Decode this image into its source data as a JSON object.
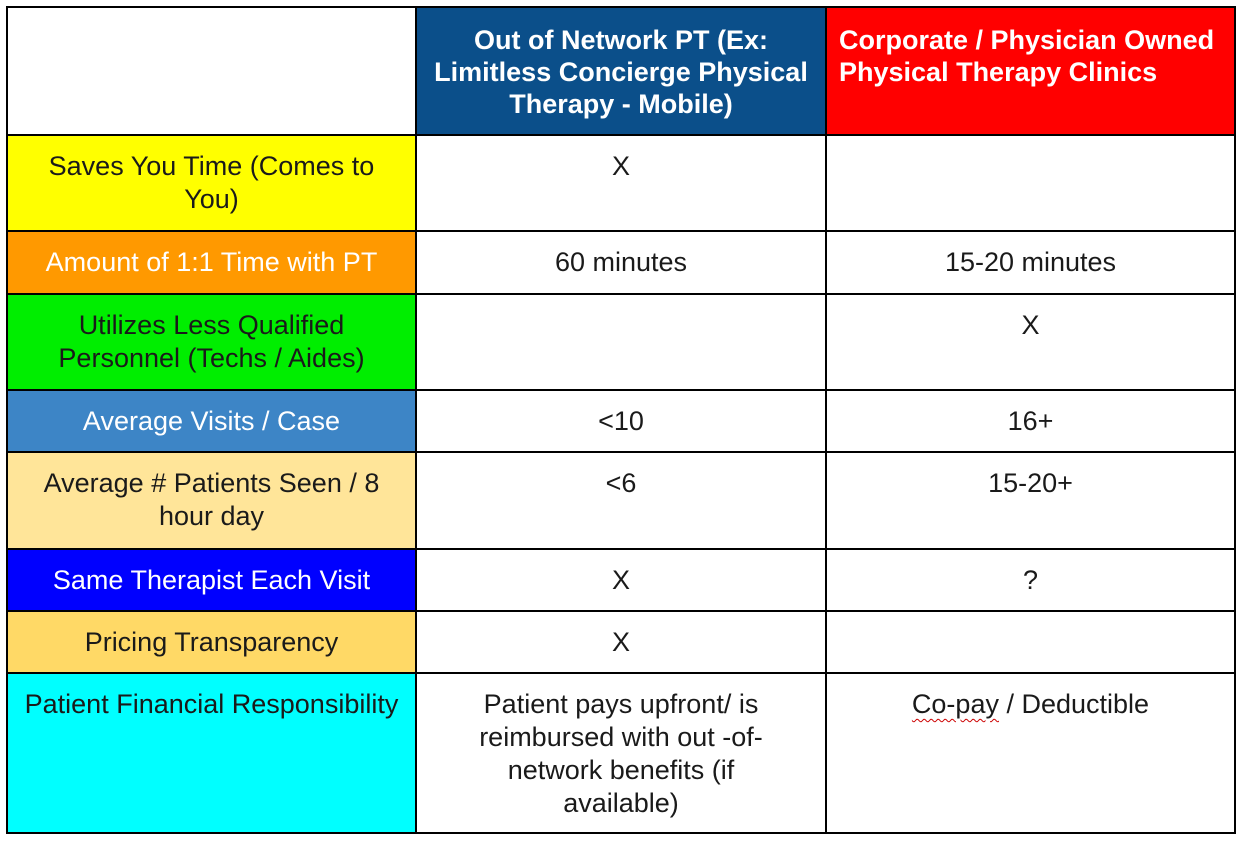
{
  "colors": {
    "header_col1": "#ffffff",
    "header_col2": "#0b4f8a",
    "header_col3": "#ff0000",
    "border": "#000000"
  },
  "header": {
    "col2": "Out of Network PT (Ex: Limitless Concierge Physical Therapy - Mobile)",
    "col3": "Corporate / Physician Owned Physical Therapy Clinics"
  },
  "rows": [
    {
      "label": "Saves You Time (Comes to You)",
      "label_bg": "#ffff00",
      "label_color": "#1a1a1a",
      "out_of_network": "X",
      "corporate": ""
    },
    {
      "label": "Amount of 1:1 Time with PT",
      "label_bg": "#ff9900",
      "label_color": "#ffffff",
      "out_of_network": "60 minutes",
      "corporate": "15-20 minutes"
    },
    {
      "label": "Utilizes Less Qualified Personnel (Techs / Aides)",
      "label_bg": "#00ee00",
      "label_color": "#1a1a1a",
      "out_of_network": "",
      "corporate": "X"
    },
    {
      "label": "Average Visits / Case",
      "label_bg": "#3d85c6",
      "label_color": "#ffffff",
      "out_of_network": "<10",
      "corporate": "16+"
    },
    {
      "label": "Average # Patients Seen / 8 hour day",
      "label_bg": "#ffe599",
      "label_color": "#1a1a1a",
      "out_of_network": "<6",
      "corporate": "15-20+"
    },
    {
      "label": "Same Therapist Each Visit",
      "label_bg": "#0000ff",
      "label_color": "#ffffff",
      "out_of_network": "X",
      "corporate": "?"
    },
    {
      "label": "Pricing Transparency",
      "label_bg": "#ffd966",
      "label_color": "#1a1a1a",
      "out_of_network": "X",
      "corporate": ""
    },
    {
      "label": "Patient Financial Responsibility",
      "label_bg": "#00ffff",
      "label_color": "#1a1a1a",
      "out_of_network": "Patient pays upfront/ is reimbursed with out -of-network benefits (if available)",
      "corporate_part1": "Co-pay",
      "corporate_part2": " / Deductible"
    }
  ]
}
